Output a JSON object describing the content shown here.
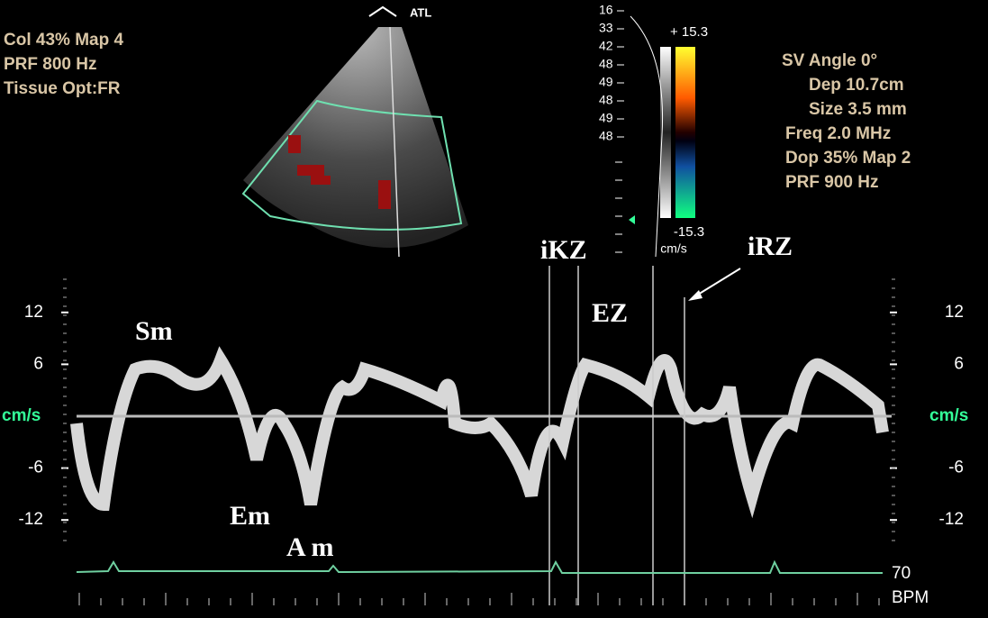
{
  "settings_left": [
    "Col 43%  Map 4",
    "PRF 800    Hz",
    "Tissue Opt:FR"
  ],
  "probe": "ATL",
  "depth_labels": [
    "16",
    "33",
    "42",
    "48",
    "49",
    "48",
    "49",
    "48"
  ],
  "color_scale": {
    "top": "+ 15.3",
    "bottom": "-15.3",
    "unit": "cm/s"
  },
  "settings_right": [
    "SV Angle 0°",
    "Dep 10.7cm",
    "Size 3.5  mm",
    "Freq 2.0  MHz",
    "Dop 35%  Map 2",
    "PRF 900    Hz"
  ],
  "annotations": {
    "ikz": "iKZ",
    "irz": "iRZ",
    "ez": "EZ",
    "sm": "Sm",
    "em": "Em",
    "am": "A m"
  },
  "velocity_axis": {
    "ticks": [
      12,
      6,
      -6,
      -12
    ],
    "unit": "cm/s"
  },
  "heart_rate": {
    "value": "70",
    "unit": "BPM"
  }
}
